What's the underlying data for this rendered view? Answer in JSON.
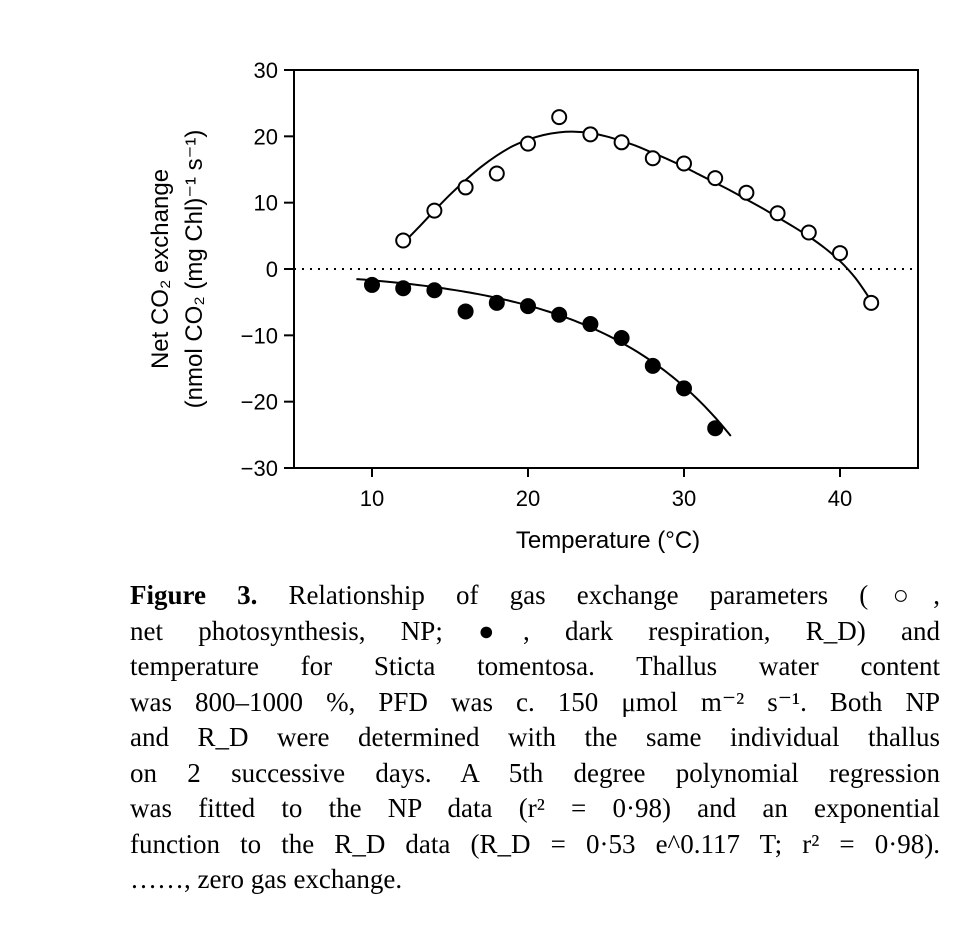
{
  "chart_data": {
    "type": "scatter",
    "xlabel": "Temperature (°C)",
    "ylabel_line1": "Net CO₂ exchange",
    "ylabel_line2": "(nmol CO₂ (mg Chl)⁻¹ s⁻¹)",
    "xlim": [
      5,
      45
    ],
    "ylim": [
      -30,
      30
    ],
    "xticks": [
      10,
      20,
      30,
      40
    ],
    "yticks": [
      30,
      20,
      10,
      0,
      -10,
      -20,
      -30
    ],
    "ytick_labels": [
      "30",
      "20",
      "10",
      "0",
      "−10",
      "−20",
      "−30"
    ],
    "zero_line": {
      "y": 0,
      "style": "dotted"
    },
    "series": [
      {
        "marker": "open-circle",
        "points": [
          [
            12,
            4.3
          ],
          [
            14,
            8.8
          ],
          [
            16,
            12.3
          ],
          [
            18,
            14.4
          ],
          [
            20,
            18.9
          ],
          [
            22,
            22.9
          ],
          [
            24,
            20.3
          ],
          [
            26,
            19.1
          ],
          [
            28,
            16.7
          ],
          [
            30,
            15.9
          ],
          [
            32,
            13.7
          ],
          [
            34,
            11.5
          ],
          [
            36,
            8.4
          ],
          [
            38,
            5.5
          ],
          [
            40,
            2.4
          ],
          [
            42,
            -5.1
          ]
        ],
        "fit": {
          "type": "polynomial-5",
          "curve": [
            [
              12,
              3.9
            ],
            [
              13,
              6.3
            ],
            [
              14,
              8.8
            ],
            [
              15,
              11.2
            ],
            [
              16,
              13.4
            ],
            [
              17,
              15.4
            ],
            [
              18,
              17.1
            ],
            [
              19,
              18.5
            ],
            [
              20,
              19.5
            ],
            [
              21,
              20.2
            ],
            [
              22,
              20.6
            ],
            [
              23,
              20.7
            ],
            [
              24,
              20.5
            ],
            [
              25,
              20.0
            ],
            [
              26,
              19.3
            ],
            [
              27,
              18.5
            ],
            [
              28,
              17.5
            ],
            [
              29,
              16.5
            ],
            [
              30,
              15.4
            ],
            [
              31,
              14.2
            ],
            [
              32,
              13.0
            ],
            [
              33,
              11.8
            ],
            [
              34,
              10.5
            ],
            [
              35,
              9.2
            ],
            [
              36,
              7.8
            ],
            [
              37,
              6.4
            ],
            [
              38,
              4.9
            ],
            [
              39,
              3.2
            ],
            [
              40,
              1.2
            ],
            [
              41,
              -1.4
            ],
            [
              42,
              -4.8
            ]
          ]
        }
      },
      {
        "marker": "filled-circle",
        "points": [
          [
            10,
            -2.4
          ],
          [
            12,
            -2.9
          ],
          [
            14,
            -3.2
          ],
          [
            16,
            -6.4
          ],
          [
            18,
            -5.1
          ],
          [
            20,
            -5.6
          ],
          [
            22,
            -6.9
          ],
          [
            24,
            -8.3
          ],
          [
            26,
            -10.4
          ],
          [
            28,
            -14.6
          ],
          [
            30,
            -18.0
          ],
          [
            32,
            -24.0
          ]
        ],
        "fit": {
          "type": "exponential",
          "x_range": [
            9,
            33
          ],
          "a": 0.53,
          "b": 0.117
        }
      }
    ]
  },
  "caption": {
    "figure_label": "Figure 3.",
    "lines": [
      " Relationship of gas exchange parameters (○,",
      "net photosynthesis, NP; ●, dark respiration, R_D) and",
      "temperature for Sticta tomentosa. Thallus water content",
      "was 800–1000 %, PFD was c. 150 μmol  m⁻² s⁻¹. Both NP",
      "and R_D were determined with the same individual thallus",
      "on 2 successive days. A 5th degree polynomial regression",
      "was fitted to the NP data (r² = 0·98) and an exponential",
      "function to the R_D data (R_D = 0·53  e^0.117 T; r² = 0·98).",
      "……, zero gas exchange."
    ]
  }
}
